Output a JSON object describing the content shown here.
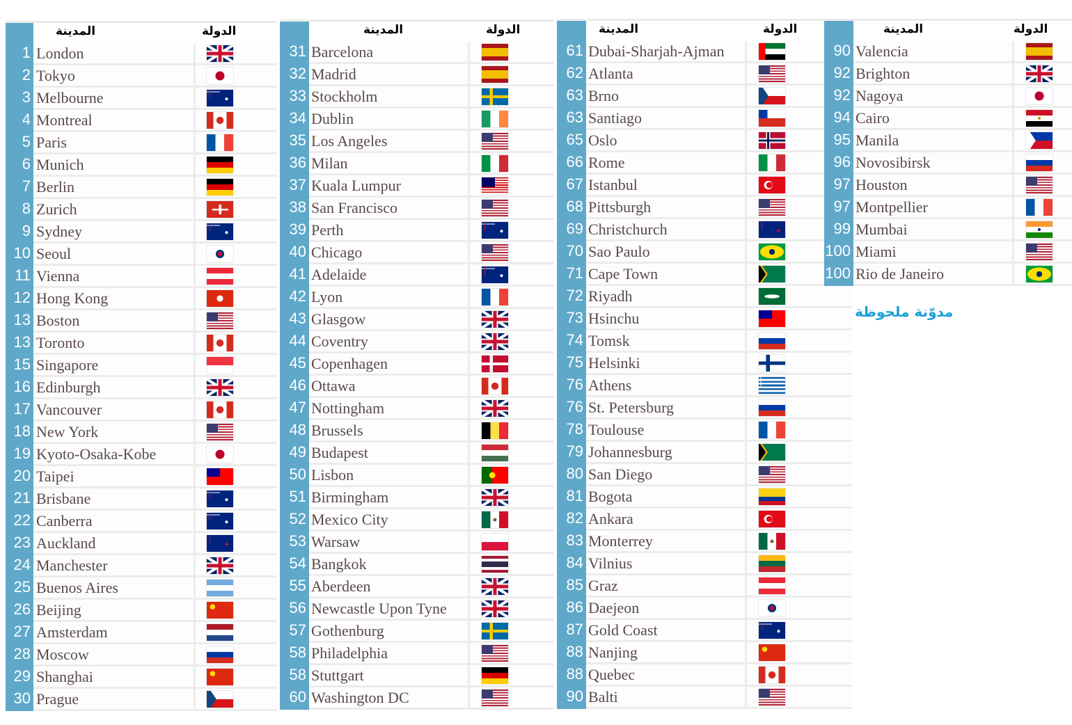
{
  "header": {
    "city": "المدينة",
    "country": "الدولة"
  },
  "watermark": "مدوّنة ملحوظة",
  "blocks": [
    {
      "rows": [
        [
          "1",
          "London",
          "gb-flag-icon"
        ],
        [
          "2",
          "Tokyo",
          "jp-flag-icon"
        ],
        [
          "3",
          "Melbourne",
          "au-flag-icon"
        ],
        [
          "4",
          "Montreal",
          "ca-flag-icon"
        ],
        [
          "5",
          "Paris",
          "fr-flag-icon"
        ],
        [
          "6",
          "Munich",
          "de-flag-icon"
        ],
        [
          "7",
          "Berlin",
          "de-flag-icon"
        ],
        [
          "8",
          "Zurich",
          "ch-flag-icon"
        ],
        [
          "9",
          "Sydney",
          "au-flag-icon"
        ],
        [
          "10",
          "Seoul",
          "kr-flag-icon"
        ],
        [
          "11",
          "Vienna",
          "at-flag-icon"
        ],
        [
          "12",
          "Hong Kong",
          "hk-flag-icon"
        ],
        [
          "13",
          "Boston",
          "us-flag-icon"
        ],
        [
          "13",
          "Toronto",
          "ca-flag-icon"
        ],
        [
          "15",
          "Singapore",
          "sg-flag-icon"
        ],
        [
          "16",
          "Edinburgh",
          "gb-flag-icon"
        ],
        [
          "17",
          "Vancouver",
          "ca-flag-icon"
        ],
        [
          "18",
          "New York",
          "us-flag-icon"
        ],
        [
          "19",
          "Kyoto-Osaka-Kobe",
          "jp-flag-icon"
        ],
        [
          "20",
          "Taipei",
          "tw-flag-icon"
        ],
        [
          "21",
          "Brisbane",
          "au-flag-icon"
        ],
        [
          "22",
          "Canberra",
          "au-flag-icon"
        ],
        [
          "23",
          "Auckland",
          "nz-flag-icon"
        ],
        [
          "24",
          "Manchester",
          "gb-flag-icon"
        ],
        [
          "25",
          "Buenos Aires",
          "ar-flag-icon"
        ],
        [
          "26",
          "Beijing",
          "cn-flag-icon"
        ],
        [
          "27",
          "Amsterdam",
          "nl-flag-icon"
        ],
        [
          "28",
          "Moscow",
          "ru-flag-icon"
        ],
        [
          "29",
          "Shanghai",
          "cn-flag-icon"
        ],
        [
          "30",
          "Prague",
          "cz-flag-icon"
        ]
      ]
    },
    {
      "rows": [
        [
          "31",
          "Barcelona",
          "es-flag-icon"
        ],
        [
          "32",
          "Madrid",
          "es-flag-icon"
        ],
        [
          "33",
          "Stockholm",
          "se-flag-icon"
        ],
        [
          "34",
          "Dublin",
          "ie-flag-icon"
        ],
        [
          "35",
          "Los Angeles",
          "us-flag-icon"
        ],
        [
          "36",
          "Milan",
          "it-flag-icon"
        ],
        [
          "37",
          "Kuala Lumpur",
          "my-flag-icon"
        ],
        [
          "38",
          "San Francisco",
          "us-flag-icon"
        ],
        [
          "39",
          "Perth",
          "au-flag-icon"
        ],
        [
          "40",
          "Chicago",
          "us-flag-icon"
        ],
        [
          "41",
          "Adelaide",
          "au-flag-icon"
        ],
        [
          "42",
          "Lyon",
          "fr-flag-icon"
        ],
        [
          "43",
          "Glasgow",
          "gb-flag-icon"
        ],
        [
          "44",
          "Coventry",
          "gb-flag-icon"
        ],
        [
          "45",
          "Copenhagen",
          "dk-flag-icon"
        ],
        [
          "46",
          "Ottawa",
          "ca-flag-icon"
        ],
        [
          "47",
          "Nottingham",
          "gb-flag-icon"
        ],
        [
          "48",
          "Brussels",
          "be-flag-icon"
        ],
        [
          "49",
          "Budapest",
          "hu-flag-icon"
        ],
        [
          "50",
          "Lisbon",
          "pt-flag-icon"
        ],
        [
          "51",
          "Birmingham",
          "gb-flag-icon"
        ],
        [
          "52",
          "Mexico City",
          "mx-flag-icon"
        ],
        [
          "53",
          "Warsaw",
          "pl-flag-icon"
        ],
        [
          "54",
          "Bangkok",
          "th-flag-icon"
        ],
        [
          "55",
          "Aberdeen",
          "gb-flag-icon"
        ],
        [
          "56",
          "Newcastle Upon Tyne",
          "gb-flag-icon"
        ],
        [
          "57",
          "Gothenburg",
          "se-flag-icon"
        ],
        [
          "58",
          "Philadelphia",
          "us-flag-icon"
        ],
        [
          "58",
          "Stuttgart",
          "de-flag-icon"
        ],
        [
          "60",
          "Washington DC",
          "us-flag-icon"
        ]
      ]
    },
    {
      "rows": [
        [
          "61",
          "Dubai-Sharjah-Ajman",
          "ae-flag-icon"
        ],
        [
          "62",
          "Atlanta",
          "us-flag-icon"
        ],
        [
          "63",
          "Brno",
          "cz-flag-icon"
        ],
        [
          "63",
          "Santiago",
          "cl-flag-icon"
        ],
        [
          "65",
          "Oslo",
          "no-flag-icon"
        ],
        [
          "66",
          "Rome",
          "it-flag-icon"
        ],
        [
          "67",
          "Istanbul",
          "tr-flag-icon"
        ],
        [
          "68",
          "Pittsburgh",
          "us-flag-icon"
        ],
        [
          "69",
          "Christchurch",
          "nz-flag-icon"
        ],
        [
          "70",
          "Sao Paulo",
          "br-flag-icon"
        ],
        [
          "71",
          "Cape Town",
          "za-flag-icon"
        ],
        [
          "72",
          "Riyadh",
          "sa-flag-icon"
        ],
        [
          "73",
          "Hsinchu",
          "tw-flag-icon"
        ],
        [
          "74",
          "Tomsk",
          "ru-flag-icon"
        ],
        [
          "75",
          "Helsinki",
          "fi-flag-icon"
        ],
        [
          "76",
          "Athens",
          "gr-flag-icon"
        ],
        [
          "76",
          "St. Petersburg",
          "ru-flag-icon"
        ],
        [
          "78",
          "Toulouse",
          "fr-flag-icon"
        ],
        [
          "79",
          "Johannesburg",
          "za-flag-icon"
        ],
        [
          "80",
          "San Diego",
          "us-flag-icon"
        ],
        [
          "81",
          "Bogota",
          "co-flag-icon"
        ],
        [
          "82",
          "Ankara",
          "tr-flag-icon"
        ],
        [
          "83",
          "Monterrey",
          "mx-flag-icon"
        ],
        [
          "84",
          "Vilnius",
          "lt-flag-icon"
        ],
        [
          "85",
          "Graz",
          "at-flag-icon"
        ],
        [
          "86",
          "Daejeon",
          "kr-flag-icon"
        ],
        [
          "87",
          "Gold Coast",
          "au-flag-icon"
        ],
        [
          "88",
          "Nanjing",
          "cn-flag-icon"
        ],
        [
          "88",
          "Quebec",
          "ca-flag-icon"
        ],
        [
          "90",
          "Balti",
          "us-flag-icon"
        ]
      ]
    },
    {
      "rows": [
        [
          "90",
          "Valencia",
          "es-flag-icon"
        ],
        [
          "92",
          "Brighton",
          "gb-flag-icon"
        ],
        [
          "92",
          "Nagoya",
          "jp-flag-icon"
        ],
        [
          "94",
          "Cairo",
          "eg-flag-icon"
        ],
        [
          "95",
          "Manila",
          "ph-flag-icon"
        ],
        [
          "96",
          "Novosibirsk",
          "ru-flag-icon"
        ],
        [
          "97",
          "Houston",
          "us-flag-icon"
        ],
        [
          "97",
          "Montpellier",
          "fr-flag-icon"
        ],
        [
          "99",
          "Mumbai",
          "in-flag-icon"
        ],
        [
          "100",
          "Miami",
          "us-flag-icon"
        ],
        [
          "100",
          "Rio de Janeiro",
          "br-flag-icon"
        ]
      ]
    }
  ]
}
